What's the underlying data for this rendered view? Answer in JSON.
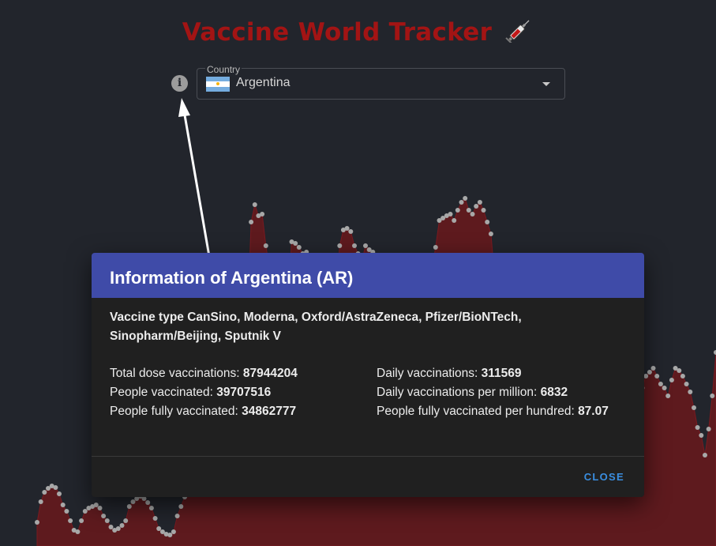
{
  "header": {
    "title": "Vaccine World Tracker"
  },
  "country_select": {
    "label": "Country",
    "value": "Argentina"
  },
  "colors": {
    "title": "#a31414",
    "area_fill": "#5e1a1e",
    "area_line": "#7a1a20",
    "point": "#a8a8a8",
    "dialog_header": "#3f4ba8",
    "close": "#3a8ee0"
  },
  "dialog": {
    "title": "Information of Argentina (AR)",
    "vaccine_label": "Vaccine type",
    "vaccine_value": "CanSino, Moderna, Oxford/AstraZeneca, Pfizer/BioNTech, Sinopharm/Beijing, Sputnik V",
    "stats_left": [
      {
        "label": "Total dose vaccinations:",
        "value": "87944204"
      },
      {
        "label": "People vaccinated:",
        "value": "39707516"
      },
      {
        "label": "People fully vaccinated:",
        "value": "34862777"
      }
    ],
    "stats_right": [
      {
        "label": "Daily vaccinations:",
        "value": "311569"
      },
      {
        "label": "Daily vaccinations per million:",
        "value": "6832"
      },
      {
        "label": "People fully vaccinated per hundred:",
        "value": "87.07"
      }
    ],
    "close_label": "CLOSE"
  },
  "chart_data": {
    "type": "area",
    "description_values": [
      30,
      56,
      68,
      73,
      76,
      74,
      66,
      52,
      44,
      32,
      20,
      18,
      32,
      44,
      48,
      50,
      52,
      48,
      38,
      32,
      24,
      20,
      22,
      26,
      32,
      50,
      56,
      60,
      63,
      60,
      55,
      48,
      35,
      22,
      18,
      15,
      14,
      18,
      38,
      50,
      62,
      70,
      75,
      78,
      80,
      82,
      84,
      86,
      90,
      95,
      108,
      125,
      140,
      155,
      170,
      200,
      230,
      280,
      410,
      432,
      418,
      420,
      380,
      350,
      330,
      300,
      290,
      285,
      320,
      385,
      383,
      378,
      370,
      372,
      364,
      360,
      330,
      310,
      300,
      290,
      300,
      320,
      380,
      400,
      402,
      398,
      380,
      370,
      360,
      380,
      375,
      372,
      350,
      340,
      330,
      320,
      320,
      310,
      305,
      300,
      300,
      300,
      300,
      300,
      300,
      308,
      322,
      350,
      378,
      412,
      415,
      418,
      420,
      412,
      425,
      435,
      440,
      425,
      420,
      430,
      435,
      425,
      410,
      395,
      340,
      300,
      260,
      250,
      240,
      220,
      210,
      205,
      230,
      240,
      250,
      260,
      245,
      240,
      245,
      245,
      240,
      230,
      250,
      260,
      275,
      225,
      200,
      205,
      210,
      215,
      218,
      220,
      205,
      195,
      190,
      180,
      170,
      170,
      165,
      160,
      210,
      225,
      230,
      245,
      200,
      215,
      220,
      225,
      215,
      205,
      200,
      190,
      210,
      225,
      222,
      215,
      205,
      195,
      175,
      150,
      140,
      115,
      148,
      190,
      245
    ]
  }
}
